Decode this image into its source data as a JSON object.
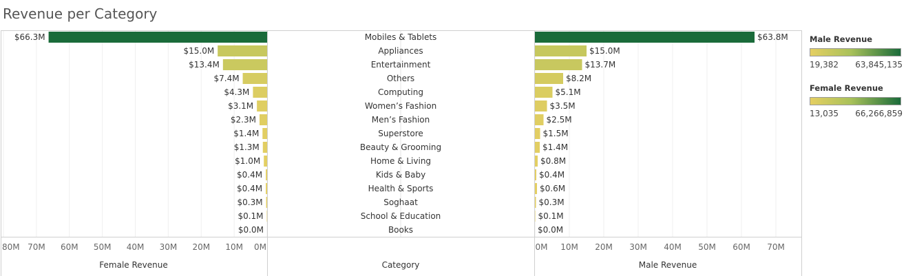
{
  "title": "Revenue per Category",
  "chart_data": {
    "type": "bar",
    "title": "Revenue per Category",
    "categories": [
      "Mobiles & Tablets",
      "Appliances",
      "Entertainment",
      "Others",
      "Computing",
      "Women’s Fashion",
      "Men’s Fashion",
      "Superstore",
      "Beauty & Grooming",
      "Home & Living",
      "Kids & Baby",
      "Health & Sports",
      "Soghaat",
      "School & Education",
      "Books"
    ],
    "series": [
      {
        "name": "Female Revenue",
        "values": [
          66.3,
          15.0,
          13.4,
          7.4,
          4.3,
          3.1,
          2.3,
          1.4,
          1.3,
          1.0,
          0.4,
          0.4,
          0.3,
          0.1,
          0.0
        ],
        "labels": [
          "$66.3M",
          "$15.0M",
          "$13.4M",
          "$7.4M",
          "$4.3M",
          "$3.1M",
          "$2.3M",
          "$1.4M",
          "$1.3M",
          "$1.0M",
          "$0.4M",
          "$0.4M",
          "$0.3M",
          "$0.1M",
          "$0.0M"
        ]
      },
      {
        "name": "Male Revenue",
        "values": [
          63.8,
          15.0,
          13.7,
          8.2,
          5.1,
          3.5,
          2.5,
          1.5,
          1.4,
          0.8,
          0.4,
          0.6,
          0.3,
          0.1,
          0.0
        ],
        "labels": [
          "$63.8M",
          "$15.0M",
          "$13.7M",
          "$8.2M",
          "$5.1M",
          "$3.5M",
          "$2.5M",
          "$1.5M",
          "$1.4M",
          "$0.8M",
          "$0.4M",
          "$0.6M",
          "$0.3M",
          "$0.1M",
          "$0.0M"
        ]
      }
    ],
    "female_axis": {
      "label": "Female Revenue",
      "ticks": [
        80,
        70,
        60,
        50,
        40,
        30,
        20,
        10,
        0
      ],
      "tick_labels": [
        "80M",
        "70M",
        "60M",
        "50M",
        "40M",
        "30M",
        "20M",
        "10M",
        "0M"
      ],
      "range": [
        0,
        80
      ]
    },
    "male_axis": {
      "label": "Male Revenue",
      "ticks": [
        0,
        10,
        20,
        30,
        40,
        50,
        60,
        70
      ],
      "tick_labels": [
        "0M",
        "10M",
        "20M",
        "30M",
        "40M",
        "50M",
        "60M",
        "70M"
      ],
      "range": [
        0,
        77
      ]
    },
    "category_axis_label": "Category",
    "grid": true,
    "colors": {
      "low": "#e5cf63",
      "mid": "#a9c15a",
      "high": "#1a6b3a"
    }
  },
  "legend": {
    "male": {
      "title": "Male Revenue",
      "min_label": "19,382",
      "max_label": "63,845,135"
    },
    "female": {
      "title": "Female Revenue",
      "min_label": "13,035",
      "max_label": "66,266,859"
    }
  }
}
